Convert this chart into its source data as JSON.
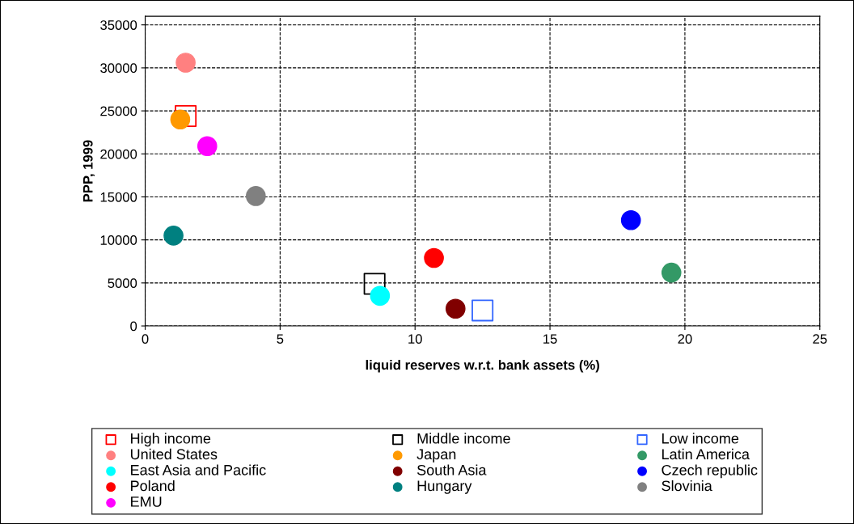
{
  "chart_data": {
    "type": "scatter",
    "xlabel": "liquid reserves w.r.t. bank assets (%)",
    "ylabel": "PPP, 1999",
    "xlim": [
      0,
      25
    ],
    "xticks": [
      0,
      5,
      10,
      15,
      20,
      25
    ],
    "ylim": [
      0,
      36000
    ],
    "yticks": [
      0,
      5000,
      10000,
      15000,
      20000,
      25000,
      30000,
      35000
    ],
    "grid": true,
    "line_style": "dashed",
    "legend": "bottom",
    "series": [
      {
        "name": "High income",
        "color": "#ff0000",
        "marker": "square",
        "x": [
          1.5
        ],
        "values": [
          24400
        ]
      },
      {
        "name": "Middle income",
        "color": "#000000",
        "marker": "square",
        "x": [
          8.5
        ],
        "values": [
          4900
        ]
      },
      {
        "name": "Low income",
        "color": "#3366ff",
        "marker": "square",
        "x": [
          12.5
        ],
        "values": [
          1800
        ]
      },
      {
        "name": "United States",
        "color": "#ff8080",
        "marker": "circle",
        "x": [
          1.5
        ],
        "values": [
          30600
        ]
      },
      {
        "name": "Japan",
        "color": "#ff9900",
        "marker": "circle",
        "x": [
          1.3
        ],
        "values": [
          24000
        ]
      },
      {
        "name": "Latin America",
        "color": "#339966",
        "marker": "circle",
        "x": [
          19.5
        ],
        "values": [
          6200
        ]
      },
      {
        "name": "East Asia and Pacific",
        "color": "#00ffff",
        "marker": "circle",
        "x": [
          8.7
        ],
        "values": [
          3500
        ]
      },
      {
        "name": "South Asia",
        "color": "#800000",
        "marker": "circle",
        "x": [
          11.5
        ],
        "values": [
          2000
        ]
      },
      {
        "name": "Czech republic",
        "color": "#0000ff",
        "marker": "circle",
        "x": [
          18.0
        ],
        "values": [
          12300
        ]
      },
      {
        "name": "Poland",
        "color": "#ff0000",
        "marker": "circle",
        "x": [
          10.7
        ],
        "values": [
          7900
        ]
      },
      {
        "name": "Hungary",
        "color": "#008080",
        "marker": "circle",
        "x": [
          1.05
        ],
        "values": [
          10500
        ]
      },
      {
        "name": "Slovinia",
        "color": "#808080",
        "marker": "circle",
        "x": [
          4.1
        ],
        "values": [
          15100
        ]
      },
      {
        "name": "EMU",
        "color": "#ff00ff",
        "marker": "circle",
        "x": [
          2.3
        ],
        "values": [
          20900
        ]
      }
    ]
  }
}
